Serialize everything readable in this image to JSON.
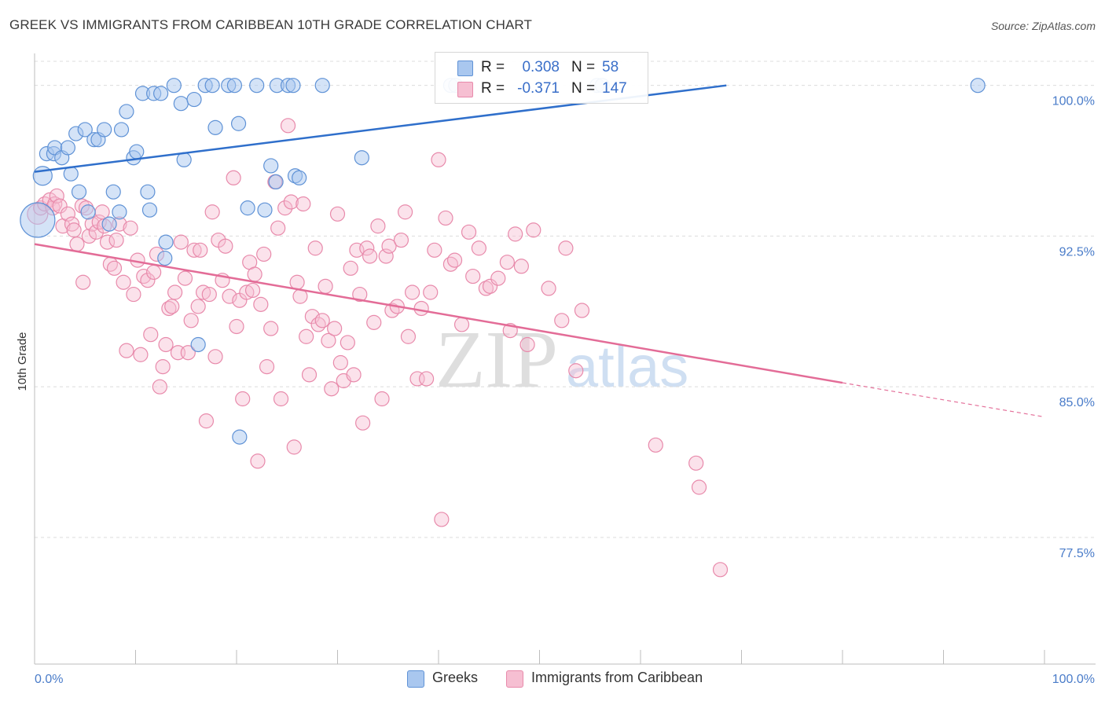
{
  "title": "GREEK VS IMMIGRANTS FROM CARIBBEAN 10TH GRADE CORRELATION CHART",
  "source": "Source: ZipAtlas.com",
  "watermark": {
    "zip": "ZIP",
    "atlas": "atlas"
  },
  "legend": {
    "series1": {
      "r_label": "R =",
      "r_value": "0.308",
      "n_label": "N =",
      "n_value": "58"
    },
    "series2": {
      "r_label": "R =",
      "r_value": "-0.371",
      "n_label": "N =",
      "n_value": "147"
    }
  },
  "colors": {
    "greek_fill": "#a9c7ef",
    "greek_stroke": "#5f92d6",
    "greek_line": "#2f6fcb",
    "carib_fill": "#f6bfd2",
    "carib_stroke": "#e88aab",
    "carib_line": "#e36c97",
    "grid": "#dcdcdc",
    "tick_label": "#4a7cc9"
  },
  "chart_data": {
    "type": "scatter",
    "title": "GREEK VS IMMIGRANTS FROM CARIBBEAN 10TH GRADE CORRELATION CHART",
    "xlabel": "",
    "ylabel": "10th Grade",
    "xlim": [
      0,
      100
    ],
    "ylim": [
      71.2,
      101.2
    ],
    "x_tick_labels": [
      "0.0%",
      "100.0%"
    ],
    "y_ticks": [
      77.5,
      85.0,
      92.5,
      100.0
    ],
    "y_tick_labels": [
      "77.5%",
      "85.0%",
      "92.5%",
      "100.0%"
    ],
    "grid": true,
    "legend_position": "bottom-center",
    "series": [
      {
        "name": "Greeks",
        "r": 0.308,
        "n": 58,
        "trend": {
          "x": [
            0.0,
            68.5
          ],
          "y": [
            95.7,
            100.0
          ]
        },
        "points": [
          [
            0.3,
            93.3,
            22
          ],
          [
            0.8,
            95.5,
            12
          ],
          [
            1.2,
            96.6,
            9
          ],
          [
            1.9,
            96.6,
            9
          ],
          [
            2.0,
            96.9,
            9
          ],
          [
            2.7,
            96.4,
            9
          ],
          [
            3.3,
            96.9,
            9
          ],
          [
            3.6,
            95.6,
            9
          ],
          [
            4.1,
            97.6,
            9
          ],
          [
            4.4,
            94.7,
            9
          ],
          [
            5.0,
            97.8,
            9
          ],
          [
            5.3,
            93.7,
            9
          ],
          [
            5.9,
            97.3,
            9
          ],
          [
            6.3,
            97.3,
            9
          ],
          [
            6.9,
            97.8,
            9
          ],
          [
            7.4,
            93.1,
            9
          ],
          [
            7.8,
            94.7,
            9
          ],
          [
            8.4,
            93.7,
            9
          ],
          [
            8.6,
            97.8,
            9
          ],
          [
            9.1,
            98.7,
            9
          ],
          [
            9.8,
            96.4,
            9
          ],
          [
            10.1,
            96.7,
            9
          ],
          [
            10.7,
            99.6,
            9
          ],
          [
            11.2,
            94.7,
            9
          ],
          [
            11.4,
            93.8,
            9
          ],
          [
            11.8,
            99.6,
            9
          ],
          [
            12.5,
            99.6,
            9
          ],
          [
            12.9,
            91.4,
            9
          ],
          [
            13.0,
            92.2,
            9
          ],
          [
            13.8,
            100.0,
            9
          ],
          [
            14.5,
            99.1,
            9
          ],
          [
            14.8,
            96.3,
            9
          ],
          [
            15.8,
            99.3,
            9
          ],
          [
            16.2,
            87.1,
            9
          ],
          [
            16.9,
            100.0,
            9
          ],
          [
            17.6,
            100.0,
            9
          ],
          [
            17.9,
            97.9,
            9
          ],
          [
            19.2,
            100.0,
            9
          ],
          [
            19.8,
            100.0,
            9
          ],
          [
            20.2,
            98.1,
            9
          ],
          [
            20.3,
            82.5,
            9
          ],
          [
            21.1,
            93.9,
            9
          ],
          [
            22.0,
            100.0,
            9
          ],
          [
            22.8,
            93.8,
            9
          ],
          [
            23.4,
            96.0,
            9
          ],
          [
            23.9,
            95.2,
            9
          ],
          [
            24.0,
            100.0,
            9
          ],
          [
            25.1,
            100.0,
            9
          ],
          [
            25.6,
            100.0,
            9
          ],
          [
            25.8,
            95.5,
            9
          ],
          [
            26.2,
            95.4,
            9
          ],
          [
            28.5,
            100.0,
            9
          ],
          [
            32.4,
            96.4,
            9
          ],
          [
            41.2,
            100.0,
            9
          ],
          [
            41.7,
            100.0,
            9
          ],
          [
            55.7,
            100.0,
            9
          ],
          [
            56.2,
            100.0,
            9
          ],
          [
            93.4,
            100.0,
            9
          ]
        ]
      },
      {
        "name": "Immigrants from Caribbean",
        "r": -0.371,
        "n": 147,
        "trend": {
          "x": [
            0.0,
            80.0
          ],
          "y": [
            92.1,
            85.2
          ]
        },
        "trend_dashed": {
          "x": [
            80.0,
            100.0
          ],
          "y": [
            85.2,
            83.5
          ]
        },
        "points": [
          [
            0.3,
            93.6,
            13
          ],
          [
            0.6,
            93.9,
            9
          ],
          [
            1.0,
            94.1,
            9
          ],
          [
            1.5,
            94.3,
            9
          ],
          [
            1.8,
            93.9,
            9
          ],
          [
            2.0,
            94.1,
            9
          ],
          [
            2.2,
            94.5,
            9
          ],
          [
            2.5,
            94.0,
            9
          ],
          [
            2.8,
            93.0,
            9
          ],
          [
            3.3,
            93.6,
            9
          ],
          [
            3.7,
            93.1,
            9
          ],
          [
            3.9,
            92.8,
            9
          ],
          [
            4.2,
            92.1,
            9
          ],
          [
            4.7,
            94.0,
            9
          ],
          [
            4.8,
            90.2,
            9
          ],
          [
            5.1,
            93.9,
            9
          ],
          [
            5.4,
            92.5,
            9
          ],
          [
            5.7,
            93.1,
            9
          ],
          [
            6.1,
            92.7,
            9
          ],
          [
            6.4,
            93.2,
            9
          ],
          [
            6.7,
            93.7,
            9
          ],
          [
            6.9,
            93.0,
            9
          ],
          [
            7.2,
            92.2,
            9
          ],
          [
            7.5,
            91.1,
            9
          ],
          [
            7.9,
            90.9,
            9
          ],
          [
            8.1,
            92.3,
            9
          ],
          [
            8.4,
            93.1,
            9
          ],
          [
            8.8,
            90.2,
            9
          ],
          [
            9.1,
            86.8,
            9
          ],
          [
            9.5,
            92.9,
            9
          ],
          [
            9.8,
            89.6,
            9
          ],
          [
            10.2,
            91.3,
            9
          ],
          [
            10.5,
            86.6,
            9
          ],
          [
            10.8,
            90.5,
            9
          ],
          [
            11.2,
            90.3,
            9
          ],
          [
            11.5,
            87.6,
            9
          ],
          [
            11.8,
            90.7,
            9
          ],
          [
            12.1,
            91.6,
            9
          ],
          [
            12.4,
            85.0,
            9
          ],
          [
            12.7,
            86.0,
            9
          ],
          [
            13.0,
            87.1,
            9
          ],
          [
            13.3,
            88.9,
            9
          ],
          [
            13.6,
            89.0,
            9
          ],
          [
            13.9,
            89.7,
            9
          ],
          [
            14.2,
            86.7,
            9
          ],
          [
            14.5,
            92.2,
            9
          ],
          [
            14.9,
            90.4,
            9
          ],
          [
            15.2,
            86.7,
            9
          ],
          [
            15.5,
            88.3,
            9
          ],
          [
            15.8,
            91.8,
            9
          ],
          [
            16.2,
            89.0,
            9
          ],
          [
            16.4,
            91.8,
            9
          ],
          [
            16.7,
            89.7,
            9
          ],
          [
            17.0,
            83.3,
            9
          ],
          [
            17.3,
            89.6,
            9
          ],
          [
            17.6,
            93.7,
            9
          ],
          [
            17.9,
            86.5,
            9
          ],
          [
            18.2,
            92.3,
            9
          ],
          [
            18.6,
            90.3,
            9
          ],
          [
            18.9,
            92.0,
            9
          ],
          [
            19.3,
            89.5,
            9
          ],
          [
            19.7,
            95.4,
            9
          ],
          [
            20.0,
            88.0,
            9
          ],
          [
            20.3,
            89.3,
            9
          ],
          [
            20.6,
            84.4,
            9
          ],
          [
            21.0,
            89.7,
            9
          ],
          [
            21.3,
            91.2,
            9
          ],
          [
            21.6,
            89.8,
            9
          ],
          [
            21.8,
            90.6,
            9
          ],
          [
            22.1,
            81.3,
            9
          ],
          [
            22.4,
            89.1,
            9
          ],
          [
            22.7,
            91.6,
            9
          ],
          [
            23.0,
            86.0,
            9
          ],
          [
            23.4,
            87.9,
            9
          ],
          [
            23.8,
            95.2,
            9
          ],
          [
            24.1,
            92.9,
            9
          ],
          [
            24.4,
            84.4,
            9
          ],
          [
            24.8,
            93.9,
            9
          ],
          [
            25.1,
            98.0,
            9
          ],
          [
            25.4,
            94.2,
            9
          ],
          [
            25.7,
            82.0,
            9
          ],
          [
            26.0,
            90.2,
            9
          ],
          [
            26.3,
            89.5,
            9
          ],
          [
            26.6,
            94.1,
            9
          ],
          [
            26.9,
            87.5,
            9
          ],
          [
            27.2,
            85.6,
            9
          ],
          [
            27.5,
            88.5,
            9
          ],
          [
            27.8,
            91.9,
            9
          ],
          [
            28.1,
            88.1,
            9
          ],
          [
            28.5,
            88.3,
            9
          ],
          [
            28.8,
            90.0,
            9
          ],
          [
            29.1,
            87.3,
            9
          ],
          [
            29.4,
            84.9,
            9
          ],
          [
            29.7,
            87.9,
            9
          ],
          [
            30.0,
            93.6,
            9
          ],
          [
            30.3,
            86.2,
            9
          ],
          [
            30.6,
            85.3,
            9
          ],
          [
            31.0,
            87.2,
            9
          ],
          [
            31.3,
            90.9,
            9
          ],
          [
            31.6,
            85.6,
            9
          ],
          [
            31.9,
            91.8,
            9
          ],
          [
            32.2,
            89.6,
            9
          ],
          [
            32.5,
            83.2,
            9
          ],
          [
            32.9,
            91.9,
            9
          ],
          [
            33.2,
            91.5,
            9
          ],
          [
            33.6,
            88.2,
            9
          ],
          [
            34.0,
            93.0,
            9
          ],
          [
            34.4,
            84.4,
            9
          ],
          [
            34.8,
            91.5,
            9
          ],
          [
            35.1,
            92.0,
            9
          ],
          [
            35.4,
            88.8,
            9
          ],
          [
            35.9,
            89.0,
            9
          ],
          [
            36.3,
            92.3,
            9
          ],
          [
            36.7,
            93.7,
            9
          ],
          [
            37.0,
            87.5,
            9
          ],
          [
            37.4,
            89.7,
            9
          ],
          [
            37.9,
            85.4,
            9
          ],
          [
            38.3,
            88.9,
            9
          ],
          [
            38.8,
            85.4,
            9
          ],
          [
            39.2,
            89.7,
            9
          ],
          [
            39.6,
            91.8,
            9
          ],
          [
            40.0,
            96.3,
            9
          ],
          [
            40.3,
            78.4,
            9
          ],
          [
            40.7,
            93.4,
            9
          ],
          [
            41.2,
            91.1,
            9
          ],
          [
            41.6,
            91.3,
            9
          ],
          [
            42.3,
            88.1,
            9
          ],
          [
            43.0,
            92.7,
            9
          ],
          [
            43.4,
            90.5,
            9
          ],
          [
            44.0,
            91.9,
            9
          ],
          [
            44.7,
            89.9,
            9
          ],
          [
            45.1,
            90.0,
            9
          ],
          [
            45.9,
            90.4,
            9
          ],
          [
            46.8,
            91.2,
            9
          ],
          [
            47.1,
            87.8,
            9
          ],
          [
            47.6,
            92.6,
            9
          ],
          [
            48.2,
            91.0,
            9
          ],
          [
            48.8,
            87.1,
            9
          ],
          [
            49.4,
            92.8,
            9
          ],
          [
            50.9,
            89.9,
            9
          ],
          [
            52.2,
            88.3,
            9
          ],
          [
            52.6,
            91.9,
            9
          ],
          [
            53.6,
            85.8,
            9
          ],
          [
            54.2,
            88.8,
            9
          ],
          [
            61.5,
            82.1,
            9
          ],
          [
            65.5,
            81.2,
            9
          ],
          [
            65.8,
            80.0,
            9
          ],
          [
            67.9,
            75.9,
            9
          ]
        ]
      }
    ]
  },
  "bottom_legend": {
    "item1": "Greeks",
    "item2": "Immigrants from Caribbean"
  }
}
